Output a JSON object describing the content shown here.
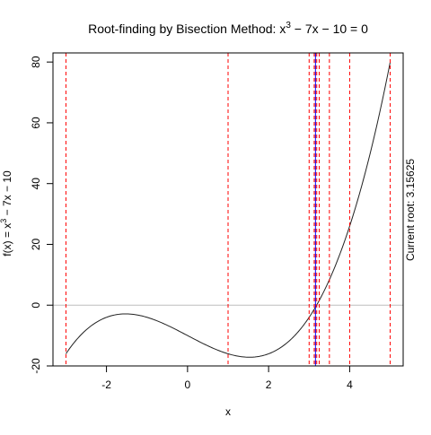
{
  "chart_data": {
    "type": "line",
    "title": {
      "prefix": "Root-finding by Bisection Method: x",
      "sup": "3",
      "suffix": " − 7x − 10 = 0"
    },
    "xlabel": "x",
    "ylabel": {
      "prefix": "f(x) = x",
      "sup": "3",
      "suffix": " − 7x − 10"
    },
    "right_label": "Current root: 3.15625",
    "xlim": [
      -3.32,
      5.32
    ],
    "ylim": [
      -20.0,
      83.0
    ],
    "x_ticks": [
      {
        "value": -2,
        "label": "-2"
      },
      {
        "value": 0,
        "label": "0"
      },
      {
        "value": 2,
        "label": "2"
      },
      {
        "value": 4,
        "label": "4"
      }
    ],
    "y_ticks": [
      {
        "value": -20,
        "label": "-20"
      },
      {
        "value": 0,
        "label": "0"
      },
      {
        "value": 20,
        "label": "20"
      },
      {
        "value": 40,
        "label": "40"
      },
      {
        "value": 60,
        "label": "60"
      },
      {
        "value": 80,
        "label": "80"
      }
    ],
    "function": {
      "expression": "x^3 - 7x - 10",
      "coefficients": {
        "a3": 1,
        "a2": 0,
        "a1": -7,
        "a0": -10
      },
      "x_range": [
        -3,
        5
      ],
      "color": "#222222"
    },
    "reference_line": {
      "y": 0,
      "color": "#bebebe"
    },
    "bisection_lines": {
      "x": [
        -3,
        1,
        3,
        3.5,
        4,
        5,
        3.25,
        3.125,
        3.1875,
        3.15625
      ],
      "color": "#ff0000"
    },
    "root_line": {
      "x": 3.15625,
      "color": "#0000ff"
    }
  }
}
